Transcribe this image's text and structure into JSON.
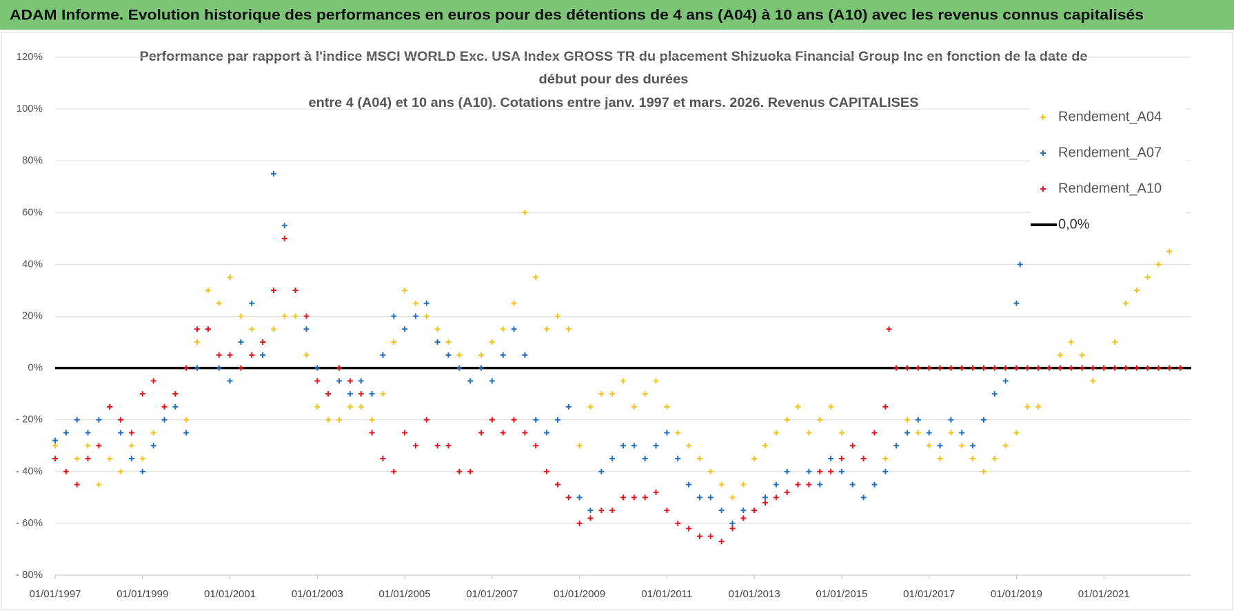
{
  "header": {
    "title": "ADAM Informe. Evolution historique des performances en euros pour des détentions de 4 ans (A04) à 10 ans (A10) avec les revenus connus capitalisés"
  },
  "chart_data": {
    "type": "scatter",
    "title": [
      "Performance par rapport à l'indice MSCI WORLD Exc. USA Index GROSS TR  du placement Shizuoka Financial Group Inc en fonction de la date de",
      "début pour des durées",
      "entre 4 (A04) et 10 ans (A10). Cotations entre janv. 1997 et mars. 2026. Revenus CAPITALISES"
    ],
    "xlim": [
      "01/01/1997",
      "01/01/2023"
    ],
    "xticks": [
      "01/01/1997",
      "01/01/1999",
      "01/01/2001",
      "01/01/2003",
      "01/01/2005",
      "01/01/2007",
      "01/01/2009",
      "01/01/2011",
      "01/01/2013",
      "01/01/2015",
      "01/01/2017",
      "01/01/2019",
      "01/01/2021"
    ],
    "ylim": [
      -80,
      120
    ],
    "yticks": [
      {
        "value": -80,
        "label": "- 80%"
      },
      {
        "value": -60,
        "label": "- 60%"
      },
      {
        "value": -40,
        "label": "- 40%"
      },
      {
        "value": -20,
        "label": "- 20%"
      },
      {
        "value": 0,
        "label": "0%"
      },
      {
        "value": 20,
        "label": "20%"
      },
      {
        "value": 40,
        "label": "40%"
      },
      {
        "value": 60,
        "label": "60%"
      },
      {
        "value": 80,
        "label": "80%"
      },
      {
        "value": 100,
        "label": "100%"
      },
      {
        "value": 120,
        "label": "120%"
      }
    ],
    "grid": true,
    "legend": "right",
    "reference_line": {
      "name": "0,0%",
      "value": 0,
      "color": "#000000"
    },
    "series": [
      {
        "name": "Rendement_A04",
        "color": "#f5c21b",
        "x": [
          "01/01/1997",
          "01/04/1997",
          "01/07/1997",
          "01/10/1997",
          "01/01/1998",
          "01/04/1998",
          "01/07/1998",
          "01/10/1998",
          "01/01/1999",
          "01/04/1999",
          "01/07/1999",
          "01/10/1999",
          "01/01/2000",
          "01/04/2000",
          "01/07/2000",
          "01/10/2000",
          "01/01/2001",
          "01/04/2001",
          "01/07/2001",
          "01/10/2001",
          "01/01/2002",
          "01/04/2002",
          "01/07/2002",
          "01/10/2002",
          "01/01/2003",
          "01/04/2003",
          "01/07/2003",
          "01/10/2003",
          "01/01/2004",
          "01/04/2004",
          "01/07/2004",
          "01/10/2004",
          "01/01/2005",
          "01/04/2005",
          "01/07/2005",
          "01/10/2005",
          "01/01/2006",
          "01/04/2006",
          "01/07/2006",
          "01/10/2006",
          "01/01/2007",
          "01/04/2007",
          "01/07/2007",
          "01/10/2007",
          "01/01/2008",
          "01/04/2008",
          "01/07/2008",
          "01/10/2008",
          "01/01/2009",
          "01/04/2009",
          "01/07/2009",
          "01/10/2009",
          "01/01/2010",
          "01/04/2010",
          "01/07/2010",
          "01/10/2010",
          "01/01/2011",
          "01/04/2011",
          "01/07/2011",
          "01/10/2011",
          "01/01/2012",
          "01/04/2012",
          "01/07/2012",
          "01/10/2012",
          "01/01/2013",
          "01/04/2013",
          "01/07/2013",
          "01/10/2013",
          "01/01/2014",
          "01/04/2014",
          "01/07/2014",
          "01/10/2014",
          "01/01/2015",
          "01/04/2015",
          "01/07/2015",
          "01/10/2015",
          "01/01/2016",
          "01/04/2016",
          "01/07/2016",
          "01/10/2016",
          "01/01/2017",
          "01/04/2017",
          "01/07/2017",
          "01/10/2017",
          "01/01/2018",
          "01/04/2018",
          "01/07/2018",
          "01/10/2018",
          "01/01/2019",
          "01/04/2019",
          "01/07/2019",
          "01/10/2019",
          "01/01/2020",
          "01/04/2020",
          "01/07/2020",
          "01/10/2020",
          "01/01/2021",
          "01/04/2021",
          "01/07/2021",
          "01/10/2021",
          "01/01/2022",
          "01/04/2022",
          "01/07/2022"
        ],
        "values": [
          -30,
          -25,
          -35,
          -30,
          -45,
          -35,
          -40,
          -30,
          -35,
          -25,
          -15,
          -10,
          -20,
          10,
          30,
          25,
          35,
          20,
          15,
          5,
          15,
          20,
          20,
          5,
          -15,
          -20,
          -20,
          -15,
          -15,
          -20,
          -10,
          10,
          30,
          25,
          20,
          15,
          10,
          5,
          -5,
          5,
          10,
          15,
          25,
          60,
          35,
          15,
          20,
          15,
          -30,
          -15,
          -10,
          -10,
          -5,
          -15,
          -10,
          -5,
          -15,
          -25,
          -30,
          -35,
          -40,
          -45,
          -50,
          -45,
          -35,
          -30,
          -25,
          -20,
          -15,
          -25,
          -20,
          -15,
          -25,
          -30,
          -35,
          -25,
          -35,
          -30,
          -20,
          -25,
          -30,
          -35,
          -25,
          -30,
          -35,
          -40,
          -35,
          -30,
          -25,
          -15,
          -15,
          0,
          5,
          10,
          5,
          -5,
          0,
          10,
          25,
          30,
          35,
          40,
          45
        ]
      },
      {
        "name": "Rendement_A07",
        "color": "#1f70c1",
        "x": [
          "01/01/1997",
          "01/04/1997",
          "01/07/1997",
          "01/10/1997",
          "01/01/1998",
          "01/04/1998",
          "01/07/1998",
          "01/10/1998",
          "01/01/1999",
          "01/04/1999",
          "01/07/1999",
          "01/10/1999",
          "01/01/2000",
          "01/04/2000",
          "01/07/2000",
          "01/10/2000",
          "01/01/2001",
          "01/04/2001",
          "01/07/2001",
          "01/10/2001",
          "01/01/2002",
          "01/04/2002",
          "01/07/2002",
          "01/10/2002",
          "01/01/2003",
          "01/04/2003",
          "01/07/2003",
          "01/10/2003",
          "01/01/2004",
          "01/04/2004",
          "01/07/2004",
          "01/10/2004",
          "01/01/2005",
          "01/04/2005",
          "01/07/2005",
          "01/10/2005",
          "01/01/2006",
          "01/04/2006",
          "01/07/2006",
          "01/10/2006",
          "01/01/2007",
          "01/04/2007",
          "01/07/2007",
          "01/10/2007",
          "01/01/2008",
          "01/04/2008",
          "01/07/2008",
          "01/10/2008",
          "01/01/2009",
          "01/04/2009",
          "01/07/2009",
          "01/10/2009",
          "01/01/2010",
          "01/04/2010",
          "01/07/2010",
          "01/10/2010",
          "01/01/2011",
          "01/04/2011",
          "01/07/2011",
          "01/10/2011",
          "01/01/2012",
          "01/04/2012",
          "01/07/2012",
          "01/10/2012",
          "01/01/2013",
          "01/04/2013",
          "01/07/2013",
          "01/10/2013",
          "01/01/2014",
          "01/04/2014",
          "01/07/2014",
          "01/10/2014",
          "01/01/2015",
          "01/04/2015",
          "01/07/2015",
          "01/10/2015",
          "01/01/2016",
          "01/04/2016",
          "01/07/2016",
          "01/10/2016",
          "01/01/2017",
          "01/04/2017",
          "01/07/2017",
          "01/10/2017",
          "01/01/2018",
          "01/04/2018",
          "01/07/2018",
          "01/10/2018",
          "01/01/2019",
          "01/02/2019"
        ],
        "values": [
          -28,
          -25,
          -20,
          -25,
          -20,
          -15,
          -25,
          -35,
          -40,
          -30,
          -20,
          -15,
          -25,
          0,
          15,
          0,
          -5,
          10,
          25,
          5,
          75,
          55,
          30,
          15,
          0,
          -10,
          -5,
          -10,
          -5,
          -10,
          5,
          20,
          15,
          20,
          25,
          10,
          5,
          0,
          -5,
          0,
          -5,
          5,
          15,
          5,
          -20,
          -25,
          -20,
          -15,
          -50,
          -55,
          -40,
          -35,
          -30,
          -30,
          -35,
          -30,
          -25,
          -35,
          -45,
          -50,
          -50,
          -55,
          -60,
          -55,
          -55,
          -50,
          -45,
          -40,
          -45,
          -40,
          -45,
          -35,
          -40,
          -45,
          -50,
          -45,
          -40,
          -30,
          -25,
          -20,
          -25,
          -30,
          -20,
          -25,
          -30,
          -20,
          -10,
          -5,
          25,
          40
        ]
      },
      {
        "name": "Rendement_A10",
        "color": "#e8141b",
        "x": [
          "01/01/1997",
          "01/04/1997",
          "01/07/1997",
          "01/10/1997",
          "01/01/1998",
          "01/04/1998",
          "01/07/1998",
          "01/10/1998",
          "01/01/1999",
          "01/04/1999",
          "01/07/1999",
          "01/10/1999",
          "01/01/2000",
          "01/04/2000",
          "01/07/2000",
          "01/10/2000",
          "01/01/2001",
          "01/04/2001",
          "01/07/2001",
          "01/10/2001",
          "01/01/2002",
          "01/04/2002",
          "01/07/2002",
          "01/10/2002",
          "01/01/2003",
          "01/04/2003",
          "01/07/2003",
          "01/10/2003",
          "01/01/2004",
          "01/04/2004",
          "01/07/2004",
          "01/10/2004",
          "01/01/2005",
          "01/04/2005",
          "01/07/2005",
          "01/10/2005",
          "01/01/2006",
          "01/04/2006",
          "01/07/2006",
          "01/10/2006",
          "01/01/2007",
          "01/04/2007",
          "01/07/2007",
          "01/10/2007",
          "01/01/2008",
          "01/04/2008",
          "01/07/2008",
          "01/10/2008",
          "01/01/2009",
          "01/04/2009",
          "01/07/2009",
          "01/10/2009",
          "01/01/2010",
          "01/04/2010",
          "01/07/2010",
          "01/10/2010",
          "01/01/2011",
          "01/04/2011",
          "01/07/2011",
          "01/10/2011",
          "01/01/2012",
          "01/04/2012",
          "01/07/2012",
          "01/10/2012",
          "01/01/2013",
          "01/04/2013",
          "01/07/2013",
          "01/10/2013",
          "01/01/2014",
          "01/04/2014",
          "01/07/2014",
          "01/10/2014",
          "01/01/2015",
          "01/04/2015",
          "01/07/2015",
          "01/10/2015",
          "01/01/2016",
          "01/02/2016",
          "01/04/2016",
          "01/07/2016",
          "01/10/2016",
          "01/01/2017",
          "01/04/2017",
          "01/07/2017",
          "01/10/2017",
          "01/01/2018",
          "01/04/2018",
          "01/07/2018",
          "01/10/2018",
          "01/01/2019",
          "01/04/2019",
          "01/07/2019",
          "01/10/2019",
          "01/01/2020",
          "01/04/2020",
          "01/07/2020",
          "01/10/2020",
          "01/01/2021",
          "01/04/2021",
          "01/07/2021",
          "01/10/2021",
          "01/01/2022",
          "01/04/2022",
          "01/07/2022",
          "01/10/2022"
        ],
        "values": [
          -35,
          -40,
          -45,
          -35,
          -30,
          -15,
          -20,
          -25,
          -10,
          -5,
          -15,
          -10,
          0,
          15,
          15,
          5,
          5,
          0,
          5,
          10,
          30,
          50,
          30,
          20,
          -5,
          -10,
          0,
          -5,
          -10,
          -25,
          -35,
          -40,
          -25,
          -30,
          -20,
          -30,
          -30,
          -40,
          -40,
          -25,
          -20,
          -25,
          -20,
          -25,
          -30,
          -40,
          -45,
          -50,
          -60,
          -58,
          -55,
          -55,
          -50,
          -50,
          -50,
          -48,
          -55,
          -60,
          -62,
          -65,
          -65,
          -67,
          -62,
          -58,
          -55,
          -52,
          -50,
          -48,
          -45,
          -45,
          -40,
          -40,
          -35,
          -30,
          -35,
          -25,
          -15,
          15,
          0,
          0,
          0,
          0,
          0,
          0,
          0,
          0,
          0,
          0,
          0,
          0,
          0,
          0,
          0,
          0,
          0,
          0,
          0,
          0,
          0,
          0,
          0,
          0,
          0,
          0,
          0
        ]
      }
    ]
  }
}
